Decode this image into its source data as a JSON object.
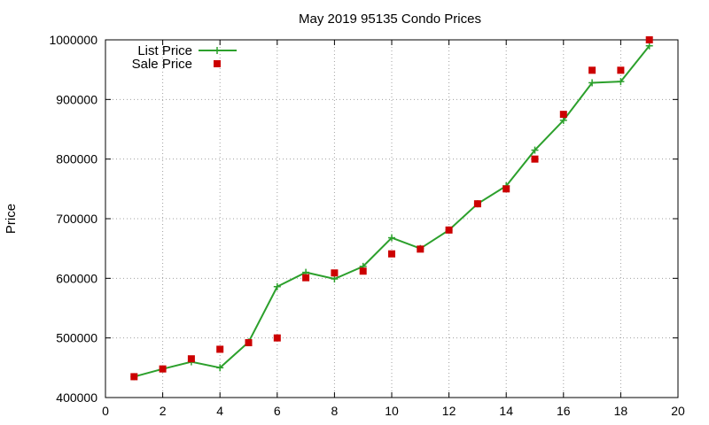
{
  "chart_data": {
    "type": "line",
    "title": "May 2019 95135 Condo Prices",
    "xlabel": "",
    "ylabel": "Price",
    "xlim": [
      0,
      20
    ],
    "ylim": [
      400000,
      1000000
    ],
    "xticks": [
      0,
      2,
      4,
      6,
      8,
      10,
      12,
      14,
      16,
      18,
      20
    ],
    "yticks": [
      400000,
      500000,
      600000,
      700000,
      800000,
      900000,
      1000000
    ],
    "grid": true,
    "legend_position": "top-left",
    "x": [
      1,
      2,
      3,
      4,
      5,
      6,
      7,
      8,
      9,
      10,
      11,
      12,
      13,
      14,
      15,
      16,
      17,
      18,
      19
    ],
    "series": [
      {
        "name": "List Price",
        "style": "line-with-plus-markers",
        "color": "#2ca02c",
        "values": [
          435000,
          448000,
          460000,
          450000,
          493000,
          586000,
          610000,
          599000,
          620000,
          668000,
          650000,
          681000,
          725000,
          755000,
          815000,
          865000,
          928000,
          930000,
          990000
        ]
      },
      {
        "name": "Sale Price",
        "style": "square-markers",
        "color": "#cc0000",
        "values": [
          435000,
          448000,
          465000,
          481000,
          492000,
          500000,
          601000,
          609000,
          612000,
          641000,
          649000,
          681000,
          725000,
          750000,
          800000,
          875000,
          949000,
          949000,
          1000000
        ]
      }
    ]
  }
}
